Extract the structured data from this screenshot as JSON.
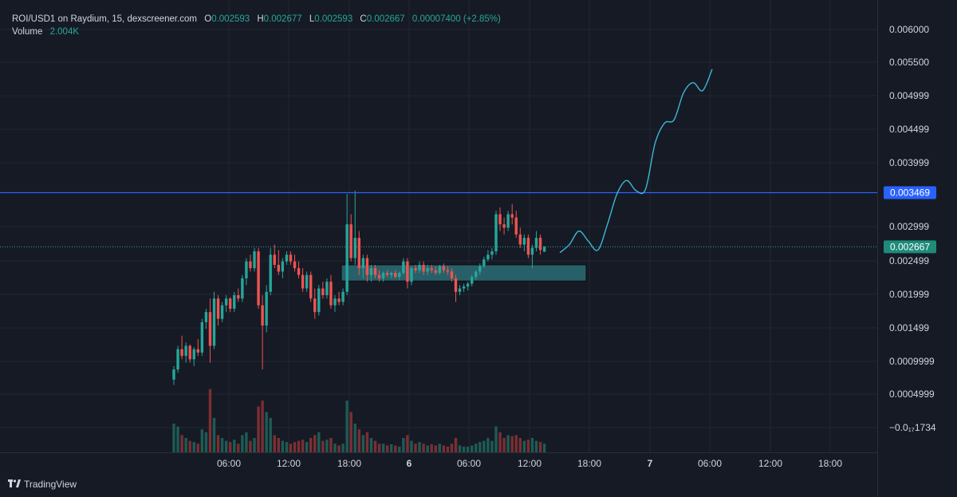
{
  "legend": {
    "symbol": "ROI/USD1 on Raydium, 15, dexscreener.com",
    "o_label": "O",
    "o": "0.002593",
    "h_label": "H",
    "h": "0.002677",
    "l_label": "L",
    "l": "0.002593",
    "c_label": "C",
    "c": "0.002667",
    "change": "0.00007400 (+2.85%)",
    "volume_label": "Volume",
    "volume": "2.004K"
  },
  "brand": {
    "name": "TradingView",
    "icon": "tradingview-logo-icon"
  },
  "colors": {
    "up": "#26a69a",
    "down": "#ef5350",
    "line": "#2962ff",
    "projection": "#3bb8d6",
    "box": "#2b6d75"
  },
  "chart_data": {
    "type": "candlestick",
    "y_ticks": [
      "0.006000",
      "0.005500",
      "0.004999",
      "0.004499",
      "0.003999",
      "0.002999",
      "0.002499",
      "0.001999",
      "0.001499",
      "0.0009999",
      "0.0004999",
      "−0.0₁₇1734"
    ],
    "x_ticks": [
      {
        "label": "06:00",
        "bold": false
      },
      {
        "label": "12:00",
        "bold": false
      },
      {
        "label": "18:00",
        "bold": false
      },
      {
        "label": "6",
        "bold": true
      },
      {
        "label": "06:00",
        "bold": false
      },
      {
        "label": "12:00",
        "bold": false
      },
      {
        "label": "18:00",
        "bold": false
      },
      {
        "label": "7",
        "bold": true
      },
      {
        "label": "06:00",
        "bold": false
      },
      {
        "label": "12:00",
        "bold": false
      },
      {
        "label": "18:00",
        "bold": false
      }
    ],
    "horizontal_line": {
      "value": 0.003469,
      "label": "0.003469"
    },
    "current_price": {
      "value": 0.002667,
      "label": "0.002667"
    },
    "zone": {
      "low": 0.00216,
      "high": 0.0024
    },
    "projection": [
      0.00258,
      0.0027,
      0.0029,
      0.00275,
      0.00262,
      0.003,
      0.00345,
      0.00365,
      0.0035,
      0.00352,
      0.0042,
      0.0045,
      0.00455,
      0.00495,
      0.0051,
      0.00498,
      0.0053
    ],
    "candles": [
      {
        "o": 0.0007,
        "h": 0.0009,
        "l": 0.00062,
        "c": 0.00085,
        "v": 0.5
      },
      {
        "o": 0.00085,
        "h": 0.0012,
        "l": 0.0008,
        "c": 0.00115,
        "v": 0.45
      },
      {
        "o": 0.00115,
        "h": 0.00135,
        "l": 0.001,
        "c": 0.00105,
        "v": 0.3
      },
      {
        "o": 0.00105,
        "h": 0.00125,
        "l": 0.00095,
        "c": 0.0012,
        "v": 0.25
      },
      {
        "o": 0.0012,
        "h": 0.00122,
        "l": 0.00095,
        "c": 0.001,
        "v": 0.2
      },
      {
        "o": 0.001,
        "h": 0.00118,
        "l": 0.0009,
        "c": 0.00115,
        "v": 0.18
      },
      {
        "o": 0.00115,
        "h": 0.0013,
        "l": 0.00105,
        "c": 0.0011,
        "v": 0.15
      },
      {
        "o": 0.0011,
        "h": 0.0016,
        "l": 0.00105,
        "c": 0.00155,
        "v": 0.4
      },
      {
        "o": 0.00155,
        "h": 0.00175,
        "l": 0.00145,
        "c": 0.0017,
        "v": 0.35
      },
      {
        "o": 0.0017,
        "h": 0.0019,
        "l": 0.00095,
        "c": 0.0012,
        "v": 1.1
      },
      {
        "o": 0.0012,
        "h": 0.002,
        "l": 0.00115,
        "c": 0.0019,
        "v": 0.6
      },
      {
        "o": 0.0019,
        "h": 0.00195,
        "l": 0.0015,
        "c": 0.0016,
        "v": 0.3
      },
      {
        "o": 0.0016,
        "h": 0.00185,
        "l": 0.00155,
        "c": 0.0018,
        "v": 0.25
      },
      {
        "o": 0.0018,
        "h": 0.00195,
        "l": 0.0017,
        "c": 0.0019,
        "v": 0.2
      },
      {
        "o": 0.0019,
        "h": 0.00192,
        "l": 0.0017,
        "c": 0.00175,
        "v": 0.18
      },
      {
        "o": 0.00175,
        "h": 0.002,
        "l": 0.0017,
        "c": 0.00195,
        "v": 0.22
      },
      {
        "o": 0.00195,
        "h": 0.00205,
        "l": 0.00185,
        "c": 0.0019,
        "v": 0.15
      },
      {
        "o": 0.0019,
        "h": 0.00225,
        "l": 0.00185,
        "c": 0.0022,
        "v": 0.3
      },
      {
        "o": 0.0022,
        "h": 0.0025,
        "l": 0.0021,
        "c": 0.00245,
        "v": 0.35
      },
      {
        "o": 0.00245,
        "h": 0.00255,
        "l": 0.0023,
        "c": 0.00235,
        "v": 0.2
      },
      {
        "o": 0.00235,
        "h": 0.00265,
        "l": 0.0023,
        "c": 0.0026,
        "v": 0.25
      },
      {
        "o": 0.0026,
        "h": 0.00265,
        "l": 0.00175,
        "c": 0.0018,
        "v": 0.8
      },
      {
        "o": 0.0018,
        "h": 0.00195,
        "l": 0.00085,
        "c": 0.0015,
        "v": 0.9
      },
      {
        "o": 0.0015,
        "h": 0.0021,
        "l": 0.0014,
        "c": 0.002,
        "v": 0.7
      },
      {
        "o": 0.002,
        "h": 0.00265,
        "l": 0.00195,
        "c": 0.00255,
        "v": 0.6
      },
      {
        "o": 0.00255,
        "h": 0.0027,
        "l": 0.00235,
        "c": 0.0024,
        "v": 0.3
      },
      {
        "o": 0.0024,
        "h": 0.00262,
        "l": 0.00225,
        "c": 0.0023,
        "v": 0.25
      },
      {
        "o": 0.0023,
        "h": 0.0025,
        "l": 0.0022,
        "c": 0.00245,
        "v": 0.2
      },
      {
        "o": 0.00245,
        "h": 0.0026,
        "l": 0.0024,
        "c": 0.00255,
        "v": 0.18
      },
      {
        "o": 0.00255,
        "h": 0.0026,
        "l": 0.0024,
        "c": 0.00245,
        "v": 0.15
      },
      {
        "o": 0.00245,
        "h": 0.00255,
        "l": 0.0023,
        "c": 0.00235,
        "v": 0.18
      },
      {
        "o": 0.00235,
        "h": 0.00245,
        "l": 0.0022,
        "c": 0.00225,
        "v": 0.2
      },
      {
        "o": 0.00225,
        "h": 0.00235,
        "l": 0.002,
        "c": 0.00205,
        "v": 0.22
      },
      {
        "o": 0.00205,
        "h": 0.0023,
        "l": 0.002,
        "c": 0.00225,
        "v": 0.18
      },
      {
        "o": 0.00225,
        "h": 0.0023,
        "l": 0.00185,
        "c": 0.0019,
        "v": 0.25
      },
      {
        "o": 0.0019,
        "h": 0.00205,
        "l": 0.0016,
        "c": 0.0017,
        "v": 0.3
      },
      {
        "o": 0.0017,
        "h": 0.0021,
        "l": 0.00165,
        "c": 0.00205,
        "v": 0.35
      },
      {
        "o": 0.00205,
        "h": 0.00215,
        "l": 0.0019,
        "c": 0.00195,
        "v": 0.2
      },
      {
        "o": 0.00195,
        "h": 0.0022,
        "l": 0.0019,
        "c": 0.00215,
        "v": 0.22
      },
      {
        "o": 0.00215,
        "h": 0.00225,
        "l": 0.00175,
        "c": 0.0018,
        "v": 0.25
      },
      {
        "o": 0.0018,
        "h": 0.00195,
        "l": 0.0017,
        "c": 0.0019,
        "v": 0.15
      },
      {
        "o": 0.0019,
        "h": 0.002,
        "l": 0.0018,
        "c": 0.00185,
        "v": 0.12
      },
      {
        "o": 0.00185,
        "h": 0.00205,
        "l": 0.0018,
        "c": 0.002,
        "v": 0.15
      },
      {
        "o": 0.002,
        "h": 0.00345,
        "l": 0.00195,
        "c": 0.003,
        "v": 0.9
      },
      {
        "o": 0.003,
        "h": 0.00315,
        "l": 0.00245,
        "c": 0.0025,
        "v": 0.7
      },
      {
        "o": 0.0025,
        "h": 0.0035,
        "l": 0.0024,
        "c": 0.0028,
        "v": 0.5
      },
      {
        "o": 0.0028,
        "h": 0.0029,
        "l": 0.00225,
        "c": 0.00235,
        "v": 0.4
      },
      {
        "o": 0.00235,
        "h": 0.00255,
        "l": 0.0022,
        "c": 0.0025,
        "v": 0.3
      },
      {
        "o": 0.0025,
        "h": 0.00255,
        "l": 0.00215,
        "c": 0.00225,
        "v": 0.35
      },
      {
        "o": 0.00225,
        "h": 0.0024,
        "l": 0.00215,
        "c": 0.00235,
        "v": 0.25
      },
      {
        "o": 0.00235,
        "h": 0.0024,
        "l": 0.0022,
        "c": 0.00225,
        "v": 0.2
      },
      {
        "o": 0.00225,
        "h": 0.00232,
        "l": 0.00215,
        "c": 0.0022,
        "v": 0.15
      },
      {
        "o": 0.0022,
        "h": 0.0023,
        "l": 0.00215,
        "c": 0.00228,
        "v": 0.15
      },
      {
        "o": 0.00228,
        "h": 0.00232,
        "l": 0.00222,
        "c": 0.00225,
        "v": 0.12
      },
      {
        "o": 0.00225,
        "h": 0.0023,
        "l": 0.0022,
        "c": 0.00228,
        "v": 0.14
      },
      {
        "o": 0.00228,
        "h": 0.00232,
        "l": 0.0022,
        "c": 0.00222,
        "v": 0.12
      },
      {
        "o": 0.00222,
        "h": 0.0023,
        "l": 0.00218,
        "c": 0.00228,
        "v": 0.1
      },
      {
        "o": 0.00228,
        "h": 0.0025,
        "l": 0.00225,
        "c": 0.00245,
        "v": 0.25
      },
      {
        "o": 0.00245,
        "h": 0.0025,
        "l": 0.00205,
        "c": 0.00215,
        "v": 0.3
      },
      {
        "o": 0.00215,
        "h": 0.00238,
        "l": 0.0021,
        "c": 0.00235,
        "v": 0.2
      },
      {
        "o": 0.00235,
        "h": 0.0024,
        "l": 0.00228,
        "c": 0.00232,
        "v": 0.15
      },
      {
        "o": 0.00232,
        "h": 0.00245,
        "l": 0.00228,
        "c": 0.0024,
        "v": 0.18
      },
      {
        "o": 0.0024,
        "h": 0.00245,
        "l": 0.00225,
        "c": 0.0023,
        "v": 0.15
      },
      {
        "o": 0.0023,
        "h": 0.0024,
        "l": 0.00225,
        "c": 0.00235,
        "v": 0.12
      },
      {
        "o": 0.00235,
        "h": 0.0024,
        "l": 0.00228,
        "c": 0.00232,
        "v": 0.14
      },
      {
        "o": 0.00232,
        "h": 0.00238,
        "l": 0.00225,
        "c": 0.00228,
        "v": 0.12
      },
      {
        "o": 0.00228,
        "h": 0.0024,
        "l": 0.00225,
        "c": 0.00238,
        "v": 0.15
      },
      {
        "o": 0.00238,
        "h": 0.00242,
        "l": 0.00228,
        "c": 0.00232,
        "v": 0.12
      },
      {
        "o": 0.00232,
        "h": 0.00238,
        "l": 0.00225,
        "c": 0.0023,
        "v": 0.1
      },
      {
        "o": 0.0023,
        "h": 0.00235,
        "l": 0.00215,
        "c": 0.0022,
        "v": 0.15
      },
      {
        "o": 0.0022,
        "h": 0.00225,
        "l": 0.00185,
        "c": 0.002,
        "v": 0.25
      },
      {
        "o": 0.002,
        "h": 0.0021,
        "l": 0.00195,
        "c": 0.00205,
        "v": 0.12
      },
      {
        "o": 0.00205,
        "h": 0.00212,
        "l": 0.002,
        "c": 0.00208,
        "v": 0.1
      },
      {
        "o": 0.00208,
        "h": 0.00215,
        "l": 0.00202,
        "c": 0.00212,
        "v": 0.1
      },
      {
        "o": 0.00212,
        "h": 0.00225,
        "l": 0.00208,
        "c": 0.00222,
        "v": 0.12
      },
      {
        "o": 0.00222,
        "h": 0.00232,
        "l": 0.00218,
        "c": 0.0023,
        "v": 0.15
      },
      {
        "o": 0.0023,
        "h": 0.00242,
        "l": 0.00225,
        "c": 0.00238,
        "v": 0.18
      },
      {
        "o": 0.00238,
        "h": 0.00252,
        "l": 0.00235,
        "c": 0.00248,
        "v": 0.2
      },
      {
        "o": 0.00248,
        "h": 0.00262,
        "l": 0.00245,
        "c": 0.00255,
        "v": 0.25
      },
      {
        "o": 0.00255,
        "h": 0.00265,
        "l": 0.00248,
        "c": 0.0026,
        "v": 0.2
      },
      {
        "o": 0.0026,
        "h": 0.0032,
        "l": 0.00255,
        "c": 0.00315,
        "v": 0.45
      },
      {
        "o": 0.00315,
        "h": 0.00325,
        "l": 0.0029,
        "c": 0.003,
        "v": 0.35
      },
      {
        "o": 0.003,
        "h": 0.0031,
        "l": 0.00285,
        "c": 0.00295,
        "v": 0.25
      },
      {
        "o": 0.00295,
        "h": 0.0032,
        "l": 0.0029,
        "c": 0.00315,
        "v": 0.3
      },
      {
        "o": 0.00315,
        "h": 0.0033,
        "l": 0.003,
        "c": 0.0031,
        "v": 0.28
      },
      {
        "o": 0.0031,
        "h": 0.0032,
        "l": 0.0028,
        "c": 0.00285,
        "v": 0.3
      },
      {
        "o": 0.00285,
        "h": 0.00295,
        "l": 0.00265,
        "c": 0.0027,
        "v": 0.25
      },
      {
        "o": 0.0027,
        "h": 0.00285,
        "l": 0.0026,
        "c": 0.0028,
        "v": 0.2
      },
      {
        "o": 0.0028,
        "h": 0.00285,
        "l": 0.0025,
        "c": 0.00255,
        "v": 0.22
      },
      {
        "o": 0.00255,
        "h": 0.0027,
        "l": 0.00235,
        "c": 0.00265,
        "v": 0.25
      },
      {
        "o": 0.00265,
        "h": 0.0029,
        "l": 0.0026,
        "c": 0.0028,
        "v": 0.2
      },
      {
        "o": 0.0028,
        "h": 0.00285,
        "l": 0.00255,
        "c": 0.00262,
        "v": 0.18
      },
      {
        "o": 0.002593,
        "h": 0.002677,
        "l": 0.002593,
        "c": 0.002667,
        "v": 0.15
      }
    ]
  }
}
